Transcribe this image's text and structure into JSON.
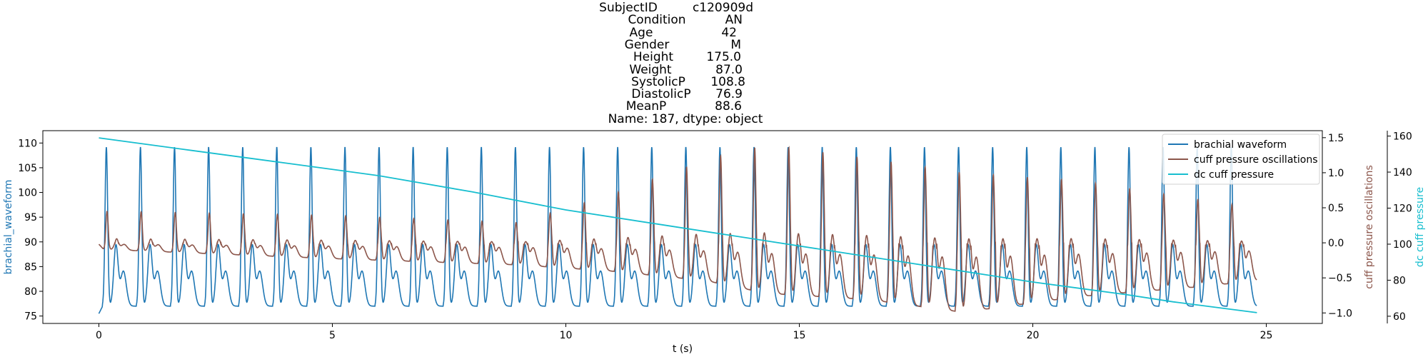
{
  "title": {
    "rows": [
      {
        "key": "SubjectID",
        "value": "c120909d"
      },
      {
        "key": "Condition",
        "value": "AN"
      },
      {
        "key": "Age",
        "value": "42"
      },
      {
        "key": "Gender",
        "value": "M"
      },
      {
        "key": "Height",
        "value": "175.0"
      },
      {
        "key": "Weight",
        "value": "87.0"
      },
      {
        "key": "SystolicP",
        "value": "108.8"
      },
      {
        "key": "DiastolicP",
        "value": "76.9"
      },
      {
        "key": "MeanP",
        "value": "88.6"
      }
    ],
    "footer": "Name: 187, dtype: object"
  },
  "chart_data": {
    "type": "line",
    "xlabel": "t (s)",
    "xlim": [
      -1.2,
      26.2
    ],
    "xticks": [
      0,
      5,
      10,
      15,
      20,
      25
    ],
    "axes": {
      "left": {
        "label": "brachial_waveform",
        "color": "#1f77b4",
        "ylim": [
          73.5,
          112.5
        ],
        "ticks": [
          75,
          80,
          85,
          90,
          95,
          100,
          105,
          110
        ]
      },
      "right1": {
        "label": "cuff pressure oscillations",
        "color": "#8c564b",
        "ylim": [
          -1.15,
          1.6
        ],
        "ticks": [
          -1.0,
          -0.5,
          0.0,
          0.5,
          1.0,
          1.5
        ],
        "tick_labels": [
          "−1.0",
          "−0.5",
          "0.0",
          "0.5",
          "1.0",
          "1.5"
        ]
      },
      "right2": {
        "label": "dc cuff pressure",
        "color": "#17becf",
        "ylim": [
          56,
          163
        ],
        "ticks": [
          60,
          80,
          100,
          120,
          140,
          160
        ]
      }
    },
    "legend": {
      "placement": "upper-right",
      "entries": [
        {
          "name": "brachial waveform",
          "color": "#1f77b4"
        },
        {
          "name": "cuff pressure oscillations",
          "color": "#8c564b"
        },
        {
          "name": "dc cuff pressure",
          "color": "#17becf"
        }
      ]
    },
    "series": [
      {
        "name": "brachial waveform",
        "axis": "left",
        "color": "#1f77b4",
        "t_start": 0.0,
        "t_end": 24.8,
        "beat_period_s": 0.73,
        "first_beat_s": 0.16,
        "systolic_peak": 109.8,
        "diastolic_trough": 77.0,
        "dicrotic_level": 84.0,
        "start_value": 75.5,
        "end_value": 77.5
      },
      {
        "name": "cuff pressure oscillations",
        "axis": "right1",
        "color": "#8c564b",
        "t_start": 0.0,
        "t_end": 24.8,
        "beat_period_s": 0.73,
        "amplitude_envelope": [
          {
            "t": 0.0,
            "peak": 0.5,
            "trough": -0.1
          },
          {
            "t": 5.0,
            "peak": 0.45,
            "trough": -0.25
          },
          {
            "t": 9.0,
            "peak": 0.35,
            "trough": -0.35
          },
          {
            "t": 11.0,
            "peak": 0.8,
            "trough": -0.45
          },
          {
            "t": 13.0,
            "peak": 1.35,
            "trough": -0.6
          },
          {
            "t": 14.3,
            "peak": 1.6,
            "trough": -0.8
          },
          {
            "t": 16.5,
            "peak": 1.4,
            "trough": -0.9
          },
          {
            "t": 18.5,
            "peak": 1.2,
            "trough": -1.1
          },
          {
            "t": 21.0,
            "peak": 1.05,
            "trough": -0.85
          },
          {
            "t": 23.5,
            "peak": 0.75,
            "trough": -0.7
          },
          {
            "t": 24.8,
            "peak": 0.6,
            "trough": -0.6
          }
        ],
        "start_value": -0.02,
        "end_value": -0.6
      },
      {
        "name": "dc cuff pressure",
        "axis": "right2",
        "color": "#17becf",
        "points": [
          [
            0.0,
            159.0
          ],
          [
            2.0,
            152.0
          ],
          [
            4.0,
            145.0
          ],
          [
            6.0,
            138.0
          ],
          [
            8.0,
            129.0
          ],
          [
            10.0,
            119.0
          ],
          [
            12.0,
            111.0
          ],
          [
            14.0,
            103.0
          ],
          [
            16.0,
            95.0
          ],
          [
            18.0,
            87.0
          ],
          [
            20.0,
            79.0
          ],
          [
            22.0,
            72.0
          ],
          [
            23.0,
            68.0
          ],
          [
            24.8,
            62.0
          ]
        ]
      }
    ]
  }
}
